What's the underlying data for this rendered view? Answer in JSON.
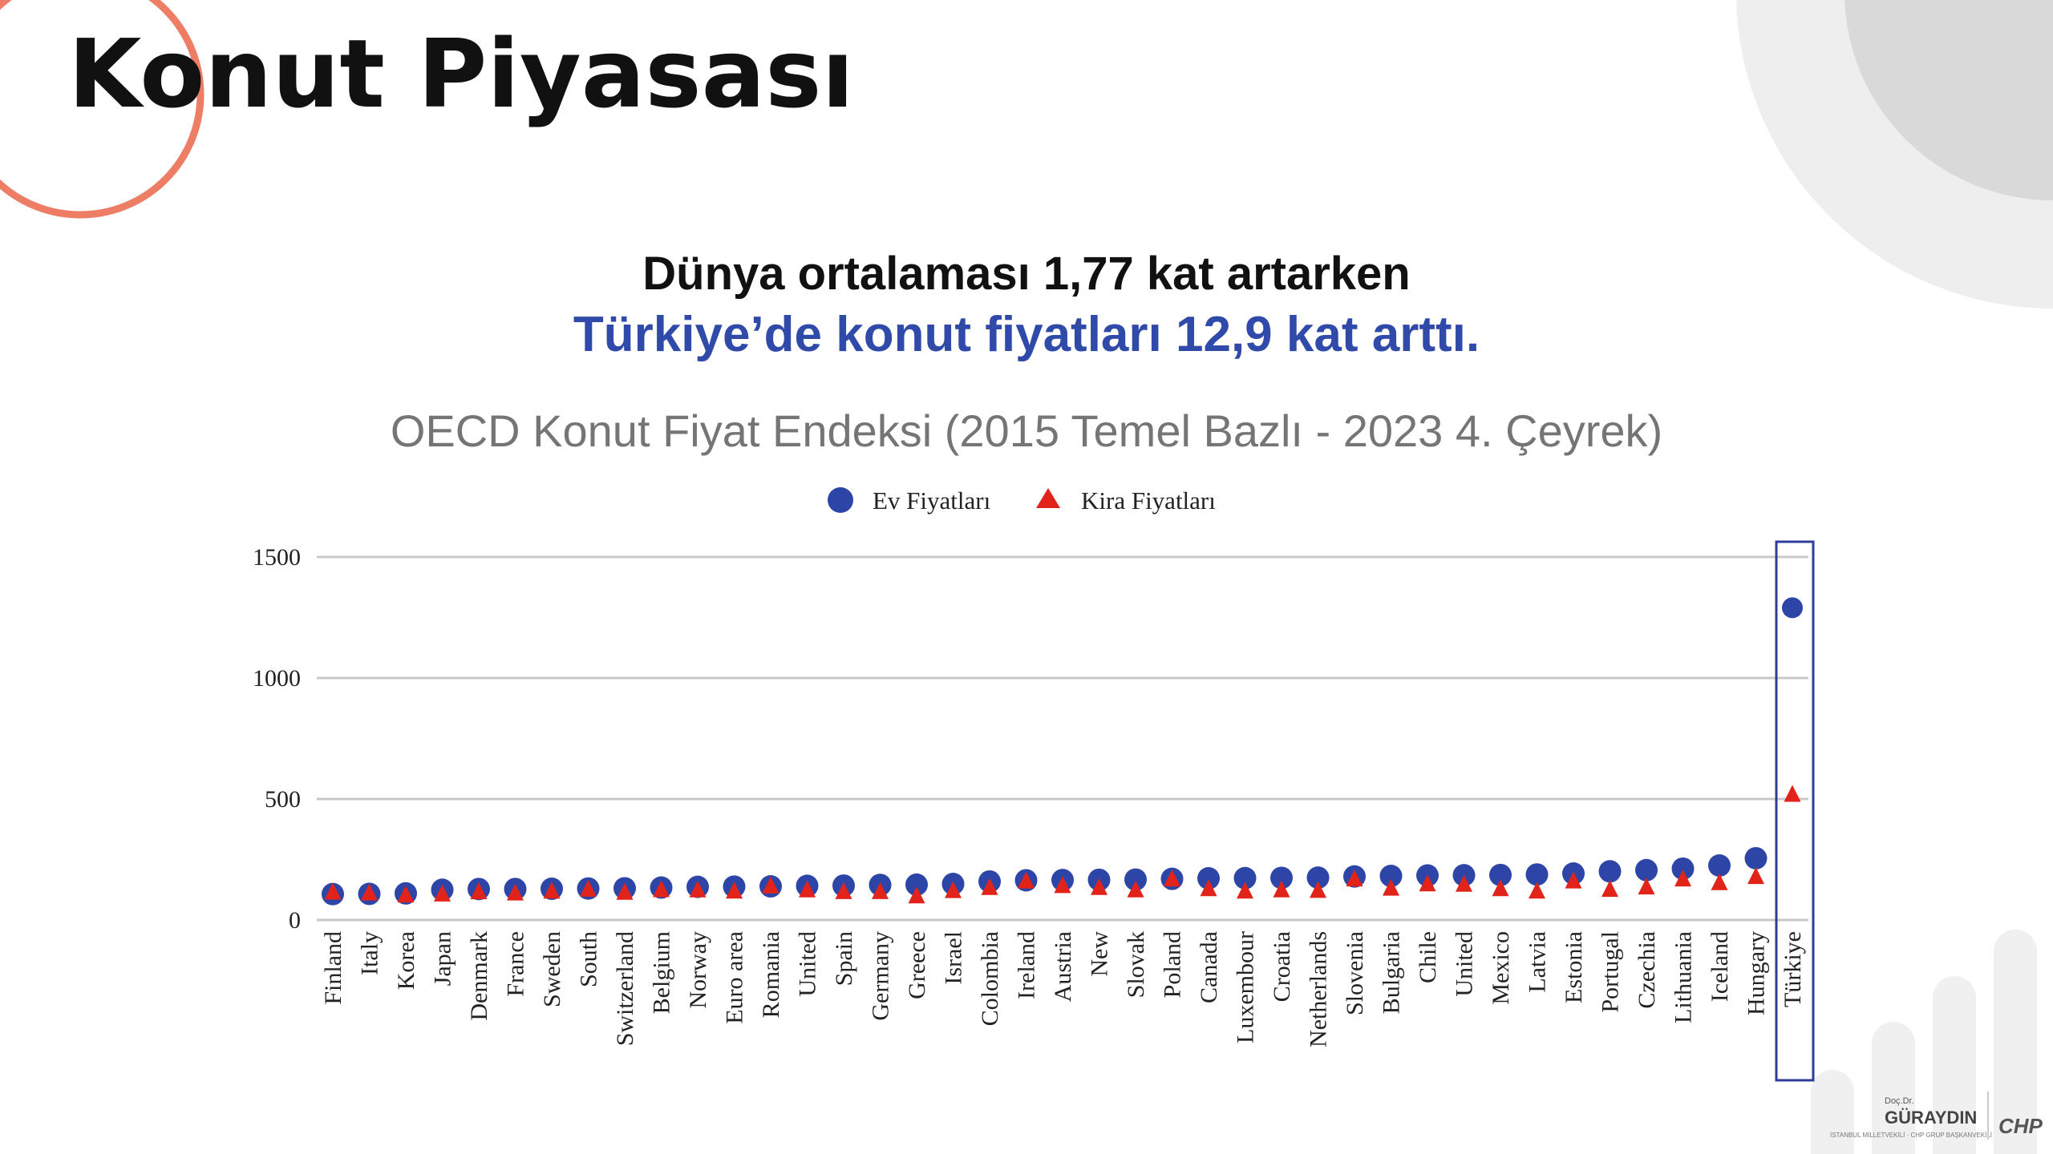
{
  "slide": {
    "title": "Konut Piyasası",
    "headline_line1": "Dünya ortalaması 1,77 kat artarken",
    "headline_line2": "Türkiye’de konut fiyatları 12,9 kat arttı."
  },
  "colors": {
    "accent_blue": "#2f4aa8",
    "marker_blue": "#2e45a8",
    "marker_red": "#e2231a",
    "circle_orange": "#ee7d66",
    "highlight_box": "#2e3d9c"
  },
  "branding": {
    "small_text": "Doç.Dr.",
    "name": "GÜRAYDIN",
    "subtitle": "İSTANBUL MİLLETVEKİLİ · CHP GRUP BAŞKANVEKİLİ",
    "party": "CHP"
  },
  "chart_data": {
    "type": "scatter",
    "title": "OECD Konut Fiyat Endeksi (2015 Temel Bazlı - 2023 4. Çeyrek)",
    "ylim": [
      0,
      1500
    ],
    "yticks": [
      0,
      500,
      1000,
      1500
    ],
    "grid": true,
    "legend_position": "top-center",
    "categories": [
      "Finland",
      "Italy",
      "Korea",
      "Japan",
      "Denmark",
      "France",
      "Sweden",
      "South",
      "Switzerland",
      "Belgium",
      "Norway",
      "Euro area",
      "Romania",
      "United",
      "Spain",
      "Germany",
      "Greece",
      "Israel",
      "Colombia",
      "Ireland",
      "Austria",
      "New",
      "Slovak",
      "Poland",
      "Canada",
      "Luxembour",
      "Croatia",
      "Netherlands",
      "Slovenia",
      "Bulgaria",
      "Chile",
      "United",
      "Mexico",
      "Latvia",
      "Estonia",
      "Portugal",
      "Czechia",
      "Lithuania",
      "Iceland",
      "Hungary",
      "Türkiye"
    ],
    "highlight_category": "Türkiye",
    "series": [
      {
        "name": "Ev Fiyatları",
        "marker": "circle",
        "values": [
          107,
          108,
          110,
          125,
          128,
          128,
          129,
          130,
          131,
          134,
          137,
          138,
          139,
          141,
          142,
          145,
          146,
          149,
          159,
          164,
          165,
          166,
          167,
          170,
          172,
          173,
          174,
          175,
          180,
          182,
          184,
          185,
          186,
          188,
          192,
          201,
          206,
          212,
          225,
          255,
          1290
        ]
      },
      {
        "name": "Kira Fiyatları",
        "marker": "triangle",
        "values": [
          116,
          112,
          104,
          108,
          117,
          112,
          120,
          128,
          115,
          126,
          125,
          120,
          141,
          125,
          118,
          118,
          100,
          122,
          135,
          162,
          143,
          135,
          125,
          170,
          130,
          120,
          125,
          123,
          170,
          132,
          150,
          148,
          130,
          120,
          162,
          127,
          137,
          170,
          155,
          180,
          520
        ]
      }
    ]
  }
}
